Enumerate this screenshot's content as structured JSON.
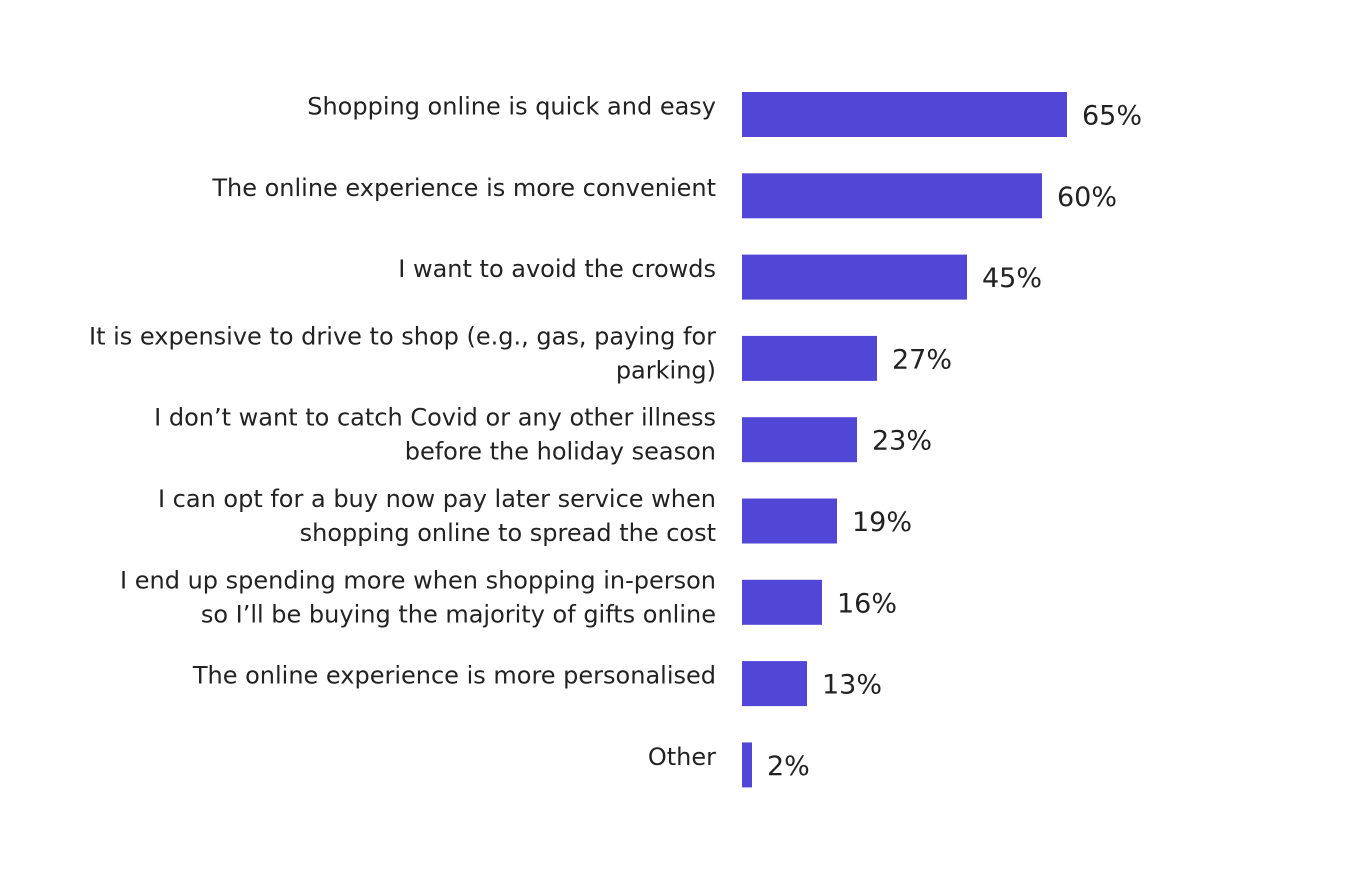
{
  "chart_data": {
    "type": "bar",
    "orientation": "horizontal",
    "bar_color": "#5246D6",
    "value_suffix": "%",
    "xlim": [
      0,
      100
    ],
    "grid": false,
    "legend": "none",
    "categories": [
      [
        "Shopping online is quick and easy"
      ],
      [
        "The online experience is more convenient"
      ],
      [
        "I want to avoid the crowds"
      ],
      [
        "It is expensive to drive to shop (e.g., gas, paying for",
        "parking)"
      ],
      [
        "I don’t want to catch Covid or any other illness",
        "before the holiday season"
      ],
      [
        "I can opt for a buy now pay later service when",
        "shopping online to spread the cost"
      ],
      [
        "I end up spending more when shopping in-person",
        "so I’ll be buying the majority of gifts online"
      ],
      [
        "The online experience is more personalised"
      ],
      [
        "Other"
      ]
    ],
    "values": [
      65,
      60,
      45,
      27,
      23,
      19,
      16,
      13,
      2
    ],
    "value_labels": [
      "65%",
      "60%",
      "45%",
      "27%",
      "23%",
      "19%",
      "16%",
      "13%",
      "2%"
    ]
  }
}
